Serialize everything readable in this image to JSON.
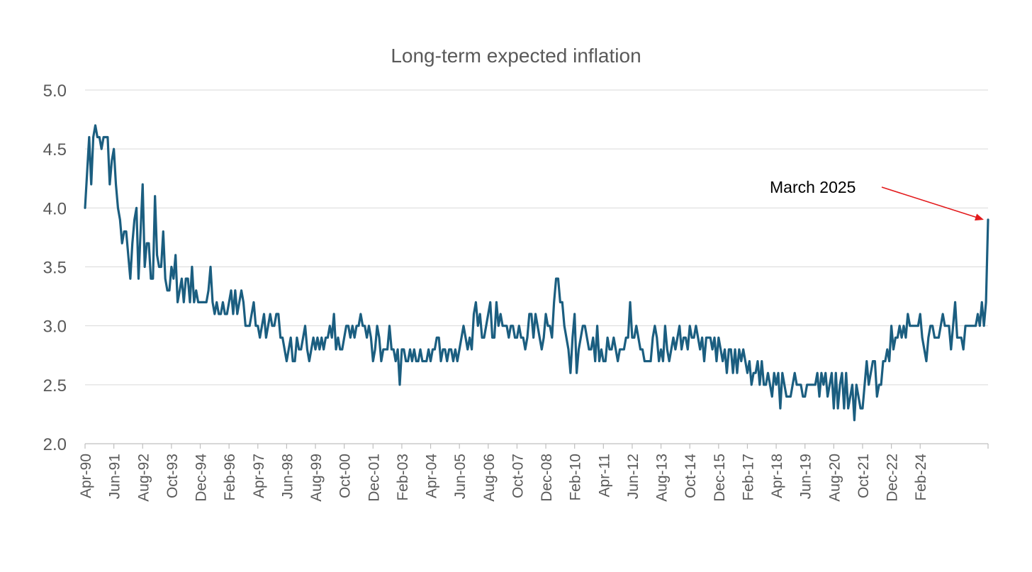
{
  "colors": {
    "series": "#1b5e80",
    "annotation_arrow": "#e31a1c",
    "grid": "#d9d9d9",
    "text": "#595959"
  },
  "chart_data": {
    "type": "line",
    "title": "Long-term expected inflation",
    "xlabel": "",
    "ylabel": "",
    "ylim": [
      2.0,
      5.0
    ],
    "yticks": [
      "2.0",
      "2.5",
      "3.0",
      "3.5",
      "4.0",
      "4.5",
      "5.0"
    ],
    "grid": "horizontal",
    "x_start": "Apr-90",
    "x_end": "Mar-25",
    "x_tick_labels": [
      "Apr-90",
      "Jun-91",
      "Aug-92",
      "Oct-93",
      "Dec-94",
      "Feb-96",
      "Apr-97",
      "Jun-98",
      "Aug-99",
      "Oct-00",
      "Dec-01",
      "Feb-03",
      "Apr-04",
      "Jun-05",
      "Aug-06",
      "Oct-07",
      "Dec-08",
      "Feb-10",
      "Apr-11",
      "Jun-12",
      "Aug-13",
      "Oct-14",
      "Dec-15",
      "Feb-17",
      "Apr-18",
      "Jun-19",
      "Aug-20",
      "Oct-21",
      "Dec-22",
      "Feb-24"
    ],
    "series": [
      {
        "values": [
          4.0,
          4.3,
          4.6,
          4.2,
          4.6,
          4.7,
          4.6,
          4.6,
          4.5,
          4.6,
          4.6,
          4.6,
          4.2,
          4.4,
          4.5,
          4.2,
          4.0,
          3.9,
          3.7,
          3.8,
          3.8,
          3.6,
          3.4,
          3.7,
          3.9,
          4.0,
          3.4,
          3.8,
          4.2,
          3.5,
          3.7,
          3.7,
          3.4,
          3.4,
          4.1,
          3.6,
          3.5,
          3.5,
          3.8,
          3.4,
          3.3,
          3.3,
          3.5,
          3.4,
          3.6,
          3.2,
          3.3,
          3.4,
          3.2,
          3.4,
          3.4,
          3.2,
          3.5,
          3.2,
          3.3,
          3.2,
          3.2,
          3.2,
          3.2,
          3.2,
          3.3,
          3.5,
          3.2,
          3.1,
          3.2,
          3.1,
          3.1,
          3.2,
          3.1,
          3.1,
          3.2,
          3.3,
          3.1,
          3.3,
          3.1,
          3.2,
          3.3,
          3.2,
          3.0,
          3.0,
          3.0,
          3.1,
          3.2,
          3.0,
          3.0,
          2.9,
          3.0,
          3.1,
          2.9,
          3.0,
          3.1,
          3.0,
          3.0,
          3.1,
          3.1,
          2.9,
          2.9,
          2.8,
          2.7,
          2.8,
          2.9,
          2.7,
          2.7,
          2.9,
          2.8,
          2.8,
          2.9,
          3.0,
          2.8,
          2.7,
          2.8,
          2.9,
          2.8,
          2.9,
          2.8,
          2.9,
          2.8,
          2.9,
          2.9,
          3.0,
          2.9,
          3.1,
          2.8,
          2.9,
          2.8,
          2.8,
          2.9,
          3.0,
          3.0,
          2.9,
          3.0,
          2.9,
          3.0,
          3.0,
          3.1,
          3.0,
          3.0,
          2.9,
          3.0,
          2.9,
          2.7,
          2.8,
          3.0,
          2.9,
          2.7,
          2.8,
          2.8,
          2.8,
          3.0,
          2.8,
          2.8,
          2.7,
          2.8,
          2.5,
          2.8,
          2.8,
          2.7,
          2.7,
          2.8,
          2.7,
          2.8,
          2.7,
          2.7,
          2.8,
          2.7,
          2.7,
          2.7,
          2.8,
          2.7,
          2.8,
          2.8,
          2.9,
          2.9,
          2.7,
          2.8,
          2.8,
          2.7,
          2.8,
          2.8,
          2.7,
          2.8,
          2.7,
          2.8,
          2.9,
          3.0,
          2.9,
          2.8,
          2.9,
          2.8,
          3.1,
          3.2,
          3.0,
          3.1,
          2.9,
          2.9,
          3.0,
          3.1,
          3.2,
          2.9,
          2.9,
          3.2,
          3.0,
          3.1,
          3.0,
          3.0,
          3.0,
          2.9,
          3.0,
          3.0,
          2.9,
          2.9,
          3.0,
          2.9,
          2.9,
          2.8,
          2.9,
          3.1,
          3.1,
          2.9,
          3.1,
          3.0,
          2.9,
          2.8,
          2.9,
          3.1,
          3.0,
          3.0,
          2.9,
          3.2,
          3.4,
          3.4,
          3.2,
          3.2,
          3.0,
          2.9,
          2.8,
          2.6,
          2.9,
          3.1,
          2.6,
          2.8,
          2.9,
          3.0,
          3.0,
          2.9,
          2.8,
          2.8,
          2.9,
          2.7,
          3.0,
          2.7,
          2.8,
          2.7,
          2.7,
          2.9,
          2.8,
          2.8,
          2.9,
          2.8,
          2.7,
          2.8,
          2.8,
          2.8,
          2.9,
          2.9,
          3.2,
          2.9,
          2.9,
          3.0,
          2.9,
          2.8,
          2.8,
          2.7,
          2.7,
          2.7,
          2.7,
          2.9,
          3.0,
          2.9,
          2.7,
          2.8,
          2.7,
          3.0,
          2.8,
          2.7,
          2.8,
          2.9,
          2.8,
          2.9,
          3.0,
          2.8,
          2.9,
          2.9,
          2.8,
          3.0,
          2.9,
          2.9,
          3.0,
          2.9,
          2.8,
          2.9,
          2.7,
          2.9,
          2.9,
          2.9,
          2.8,
          2.9,
          2.7,
          2.9,
          2.8,
          2.7,
          2.8,
          2.6,
          2.8,
          2.8,
          2.6,
          2.8,
          2.6,
          2.8,
          2.7,
          2.8,
          2.7,
          2.6,
          2.7,
          2.5,
          2.6,
          2.6,
          2.7,
          2.5,
          2.7,
          2.5,
          2.5,
          2.6,
          2.5,
          2.4,
          2.6,
          2.5,
          2.6,
          2.3,
          2.6,
          2.5,
          2.4,
          2.4,
          2.4,
          2.5,
          2.6,
          2.5,
          2.5,
          2.5,
          2.4,
          2.4,
          2.5,
          2.5,
          2.5,
          2.5,
          2.5,
          2.6,
          2.4,
          2.6,
          2.5,
          2.6,
          2.4,
          2.5,
          2.6,
          2.3,
          2.6,
          2.3,
          2.5,
          2.6,
          2.3,
          2.6,
          2.3,
          2.4,
          2.5,
          2.2,
          2.5,
          2.4,
          2.3,
          2.3,
          2.5,
          2.7,
          2.5,
          2.6,
          2.7,
          2.7,
          2.4,
          2.5,
          2.5,
          2.7,
          2.7,
          2.8,
          2.7,
          3.0,
          2.8,
          2.9,
          2.9,
          3.0,
          2.9,
          3.0,
          2.9,
          3.1,
          3.0,
          3.0,
          3.0,
          3.0,
          3.0,
          3.1,
          2.9,
          2.8,
          2.7,
          2.9,
          3.0,
          3.0,
          2.9,
          2.9,
          2.9,
          3.0,
          3.1,
          3.0,
          3.0,
          3.0,
          2.8,
          3.0,
          3.2,
          2.9,
          2.9,
          2.9,
          2.8,
          3.0,
          3.0,
          3.0,
          3.0,
          3.0,
          3.0,
          3.1,
          3.0,
          3.2,
          3.0,
          3.2,
          3.9
        ]
      }
    ],
    "annotations": [
      {
        "text": "March 2025",
        "target_x": "Mar-25",
        "target_y": 3.9
      }
    ]
  }
}
